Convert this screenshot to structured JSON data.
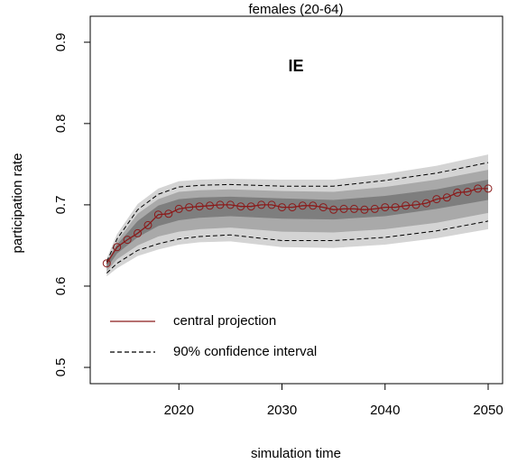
{
  "chart_data": {
    "type": "fan",
    "title": "females (20-64)",
    "annotation": "IE",
    "xlabel": "simulation time",
    "ylabel": "participation rate",
    "xlim": [
      2011.4,
      2051.4
    ],
    "xticks": [
      2020,
      2030,
      2040,
      2050
    ],
    "ylim": [
      0.48,
      0.932
    ],
    "yticks": [
      0.5,
      0.6,
      0.7,
      0.8,
      0.9
    ],
    "legend": "bottom-left",
    "series": [
      {
        "name": "central projection",
        "color": "#8b1a1a",
        "x": [
          2013,
          2014,
          2015,
          2016,
          2017,
          2018,
          2019,
          2020,
          2021,
          2022,
          2023,
          2024,
          2025,
          2026,
          2027,
          2028,
          2029,
          2030,
          2031,
          2032,
          2033,
          2034,
          2035,
          2036,
          2037,
          2038,
          2039,
          2040,
          2041,
          2042,
          2043,
          2044,
          2045,
          2046,
          2047,
          2048,
          2049,
          2050
        ],
        "values": [
          0.628,
          0.648,
          0.657,
          0.665,
          0.675,
          0.688,
          0.689,
          0.695,
          0.697,
          0.698,
          0.699,
          0.7,
          0.7,
          0.698,
          0.698,
          0.7,
          0.7,
          0.697,
          0.697,
          0.699,
          0.699,
          0.697,
          0.694,
          0.695,
          0.695,
          0.694,
          0.695,
          0.697,
          0.697,
          0.699,
          0.7,
          0.702,
          0.707,
          0.709,
          0.715,
          0.716,
          0.72,
          0.72
        ]
      },
      {
        "name": "90% confidence interval",
        "color": "#000000",
        "x": [
          2013,
          2014,
          2016,
          2018,
          2020,
          2022,
          2025,
          2030,
          2035,
          2040,
          2045,
          2050
        ],
        "upper": [
          0.63,
          0.658,
          0.694,
          0.713,
          0.722,
          0.724,
          0.725,
          0.723,
          0.723,
          0.73,
          0.739,
          0.752
        ],
        "lower": [
          0.616,
          0.628,
          0.644,
          0.652,
          0.658,
          0.661,
          0.663,
          0.656,
          0.656,
          0.66,
          0.668,
          0.68
        ]
      }
    ],
    "bands": {
      "x": [
        2013,
        2014,
        2016,
        2018,
        2020,
        2022,
        2025,
        2030,
        2035,
        2040,
        2045,
        2050
      ],
      "levels": [
        {
          "color": "#d4d4d4",
          "upper": [
            0.634,
            0.664,
            0.701,
            0.72,
            0.729,
            0.731,
            0.732,
            0.731,
            0.731,
            0.738,
            0.748,
            0.762
          ],
          "lower": [
            0.612,
            0.622,
            0.637,
            0.645,
            0.651,
            0.654,
            0.655,
            0.648,
            0.647,
            0.651,
            0.659,
            0.67
          ]
        },
        {
          "color": "#a9a9a9",
          "upper": [
            0.63,
            0.655,
            0.689,
            0.707,
            0.716,
            0.718,
            0.719,
            0.717,
            0.716,
            0.722,
            0.731,
            0.743
          ],
          "lower": [
            0.618,
            0.633,
            0.65,
            0.661,
            0.667,
            0.67,
            0.672,
            0.667,
            0.666,
            0.67,
            0.678,
            0.69
          ]
        },
        {
          "color": "#7e7e7e",
          "upper": [
            0.629,
            0.651,
            0.68,
            0.699,
            0.707,
            0.709,
            0.71,
            0.708,
            0.706,
            0.711,
            0.719,
            0.731
          ],
          "lower": [
            0.622,
            0.64,
            0.66,
            0.674,
            0.681,
            0.684,
            0.686,
            0.683,
            0.682,
            0.686,
            0.695,
            0.706
          ]
        }
      ]
    }
  }
}
